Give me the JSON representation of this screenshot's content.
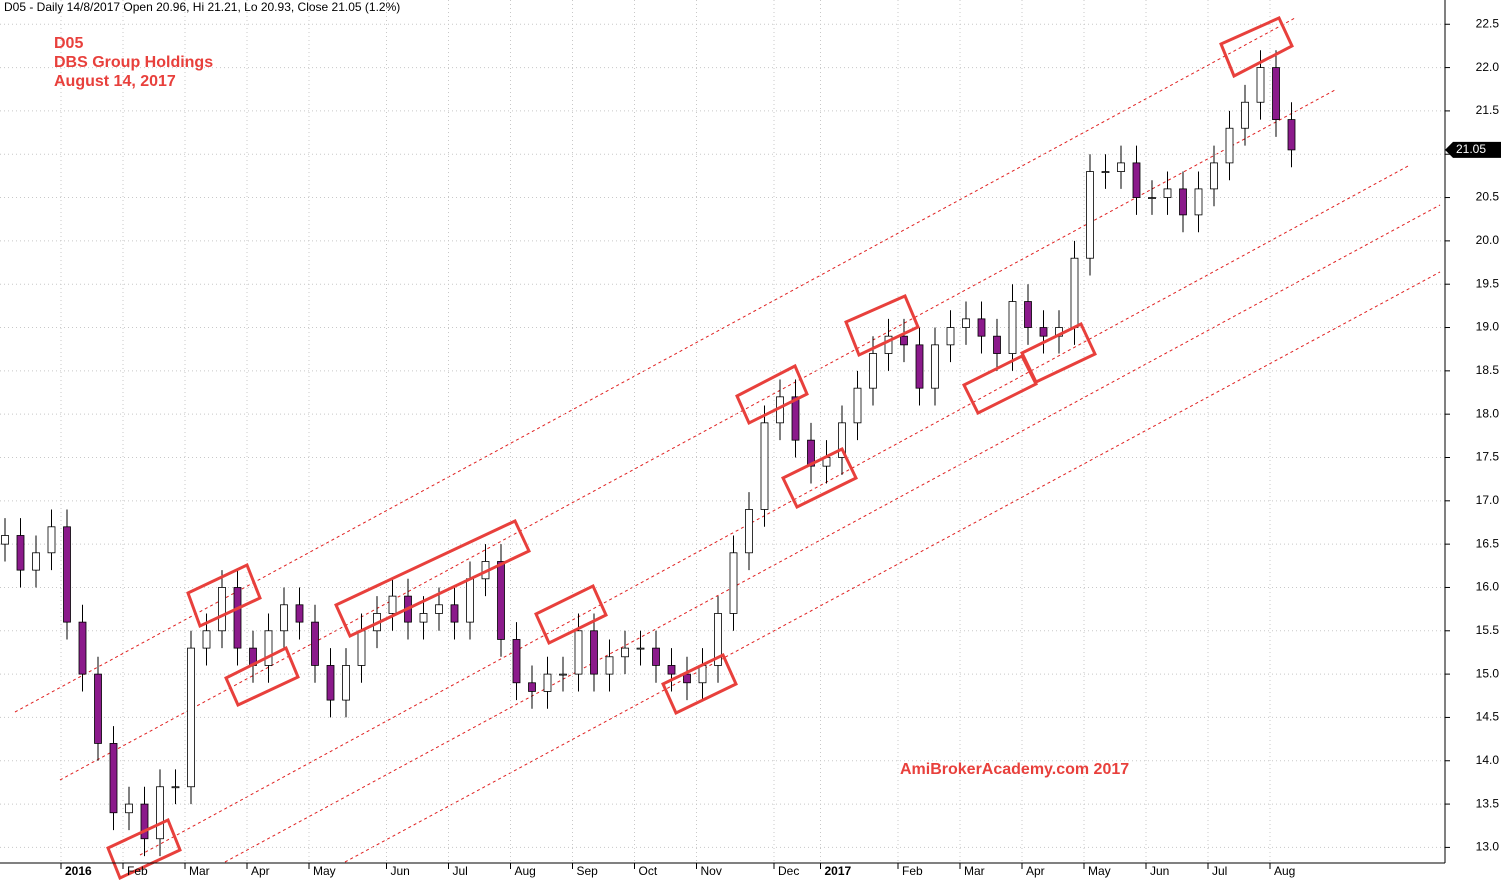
{
  "chart_data": {
    "type": "candlestick",
    "header": "D05 - Daily 14/8/2017 Open 20.96, Hi 21.21, Lo 20.93, Close 21.05 (1.2%)",
    "title": "D05",
    "subtitle": "DBS Group Holdings",
    "date_label": "August 14, 2017",
    "watermark": "AmiBrokerAcademy.com  2017",
    "categories": [
      null,
      null,
      null,
      null,
      "2016",
      null,
      null,
      null,
      "Feb",
      null,
      null,
      null,
      "Mar",
      null,
      null,
      null,
      "Apr",
      null,
      null,
      null,
      "May",
      null,
      null,
      null,
      null,
      "Jun",
      null,
      null,
      null,
      "Jul",
      null,
      null,
      null,
      "Aug",
      null,
      null,
      null,
      "Sep",
      null,
      null,
      null,
      "Oct",
      null,
      null,
      null,
      "Nov",
      null,
      null,
      null,
      null,
      "Dec",
      null,
      null,
      "2017",
      null,
      null,
      null,
      null,
      "Feb",
      null,
      null,
      null,
      "Mar",
      null,
      null,
      null,
      "Apr",
      null,
      null,
      null,
      "May",
      null,
      null,
      null,
      "Jun",
      null,
      null,
      null,
      "Jul",
      null,
      null,
      null,
      "Aug",
      null
    ],
    "open": [
      16.5,
      16.6,
      16.2,
      16.4,
      16.7,
      15.6,
      15.0,
      14.2,
      13.4,
      13.5,
      13.1,
      13.7,
      13.7,
      15.3,
      15.5,
      16.0,
      15.3,
      15.1,
      15.5,
      15.8,
      15.6,
      15.1,
      14.7,
      15.1,
      15.5,
      15.7,
      15.9,
      15.6,
      15.7,
      15.8,
      15.6,
      16.1,
      16.3,
      15.4,
      14.9,
      14.8,
      15.0,
      15.0,
      15.5,
      15.0,
      15.2,
      15.3,
      15.3,
      15.1,
      15.0,
      14.9,
      15.1,
      15.7,
      16.4,
      16.9,
      17.9,
      18.2,
      17.7,
      17.4,
      17.5,
      17.9,
      18.3,
      18.7,
      18.9,
      18.8,
      18.3,
      18.8,
      19.0,
      19.1,
      18.9,
      18.7,
      19.3,
      19.0,
      18.9,
      19.0,
      19.8,
      20.8,
      20.8,
      20.9,
      20.5,
      20.5,
      20.6,
      20.3,
      20.6,
      20.9,
      21.3,
      21.6,
      22.0,
      21.4
    ],
    "high": [
      16.8,
      16.8,
      16.6,
      16.9,
      16.9,
      15.8,
      15.2,
      14.4,
      13.7,
      13.7,
      13.9,
      13.9,
      15.5,
      15.7,
      16.2,
      16.2,
      15.5,
      15.7,
      16.0,
      16.0,
      15.8,
      15.3,
      15.3,
      15.7,
      15.9,
      16.1,
      16.1,
      15.9,
      16.0,
      16.0,
      16.3,
      16.5,
      16.5,
      15.6,
      15.1,
      15.2,
      15.2,
      15.7,
      15.7,
      15.4,
      15.5,
      15.5,
      15.5,
      15.3,
      15.2,
      15.3,
      15.9,
      16.6,
      17.1,
      18.1,
      18.4,
      18.4,
      17.9,
      17.7,
      18.1,
      18.5,
      18.9,
      19.1,
      19.1,
      19.0,
      19.0,
      19.2,
      19.3,
      19.3,
      19.1,
      19.5,
      19.5,
      19.2,
      19.2,
      20.0,
      21.0,
      21.0,
      21.1,
      21.1,
      20.7,
      20.8,
      20.8,
      20.8,
      21.1,
      21.5,
      21.8,
      22.2,
      22.2,
      21.6
    ],
    "low": [
      16.3,
      16.0,
      16.0,
      16.2,
      15.4,
      14.8,
      14.0,
      13.2,
      13.2,
      12.9,
      12.9,
      13.5,
      13.5,
      15.1,
      15.3,
      15.1,
      14.9,
      14.9,
      15.3,
      15.4,
      14.9,
      14.5,
      14.5,
      14.9,
      15.3,
      15.5,
      15.4,
      15.4,
      15.5,
      15.4,
      15.4,
      15.9,
      15.2,
      14.7,
      14.6,
      14.6,
      14.8,
      14.8,
      14.8,
      14.8,
      15.0,
      15.1,
      14.9,
      14.8,
      14.7,
      14.7,
      14.9,
      15.5,
      16.2,
      16.7,
      17.7,
      17.5,
      17.2,
      17.2,
      17.3,
      17.7,
      18.1,
      18.5,
      18.6,
      18.1,
      18.1,
      18.6,
      18.8,
      18.7,
      18.5,
      18.5,
      18.8,
      18.7,
      18.7,
      18.8,
      19.6,
      20.6,
      20.6,
      20.3,
      20.3,
      20.3,
      20.1,
      20.1,
      20.4,
      20.7,
      21.1,
      21.4,
      21.2,
      20.85
    ],
    "close": [
      16.6,
      16.2,
      16.4,
      16.7,
      15.6,
      15.0,
      14.2,
      13.4,
      13.5,
      13.1,
      13.7,
      13.7,
      15.3,
      15.5,
      16.0,
      15.3,
      15.1,
      15.5,
      15.8,
      15.6,
      15.1,
      14.7,
      15.1,
      15.5,
      15.7,
      15.9,
      15.6,
      15.7,
      15.8,
      15.6,
      16.1,
      16.3,
      15.4,
      14.9,
      14.8,
      15.0,
      15.0,
      15.5,
      15.0,
      15.2,
      15.3,
      15.3,
      15.1,
      15.0,
      14.9,
      15.1,
      15.7,
      16.4,
      16.9,
      17.9,
      18.2,
      17.7,
      17.4,
      17.5,
      17.9,
      18.3,
      18.7,
      18.9,
      18.8,
      18.3,
      18.8,
      19.0,
      19.1,
      18.9,
      18.7,
      19.3,
      19.0,
      18.9,
      19.0,
      19.8,
      20.8,
      20.8,
      20.9,
      20.5,
      20.5,
      20.6,
      20.3,
      20.6,
      20.9,
      21.3,
      21.6,
      22.0,
      21.4,
      21.05
    ],
    "up_color": "#ffffff",
    "down_color": "#8b1a8b",
    "outline_color": "#000000",
    "ylim": [
      12.82,
      22.78
    ],
    "yticks": [
      {
        "value": 13,
        "label": "13.0"
      },
      13.5,
      {
        "value": 14,
        "label": "14.0"
      },
      14.5,
      {
        "value": 15,
        "label": "15.0"
      },
      15.5,
      {
        "value": 16,
        "label": "16.0"
      },
      16.5,
      {
        "value": 17,
        "label": "17.0"
      },
      17.5,
      {
        "value": 18,
        "label": "18.0"
      },
      18.5,
      {
        "value": 19,
        "label": "19.0"
      },
      19.5,
      {
        "value": 20,
        "label": "20.0"
      },
      20.5,
      {
        "value": 21,
        "label": "21.0"
      },
      21.5,
      {
        "value": 22,
        "label": "22.0"
      },
      22.5
    ],
    "grid": true
  }
}
